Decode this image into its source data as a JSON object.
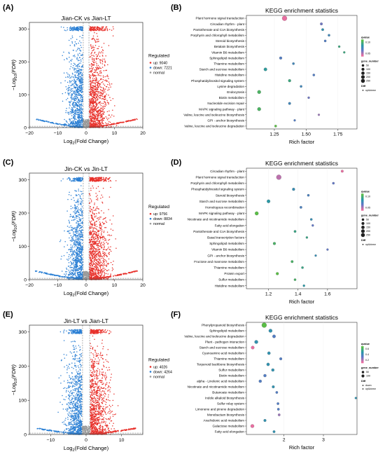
{
  "colors": {
    "up": "#e8302a",
    "down": "#2a7fd4",
    "normal": "#9a9a9a",
    "up_down": "#e96aa5"
  },
  "chart_data": [
    {
      "panel": "(A)",
      "type": "scatter",
      "title": "Jian-CK vs Jian-LT",
      "xlabel_parts": [
        "Log",
        "2",
        "(Fold Change)"
      ],
      "ylabel_parts": [
        "−Log",
        "10",
        "(FDR)"
      ],
      "xlim": [
        -20,
        20
      ],
      "ylim": [
        0,
        320
      ],
      "xticks": [
        "−20",
        "−10",
        "0",
        "10",
        "20"
      ],
      "yticks": [
        "0",
        "100",
        "200",
        "300"
      ],
      "legend_title": "Regulated",
      "legend": [
        "up: 9040",
        "down: 7221",
        "normal"
      ],
      "counts": {
        "up": 9040,
        "down": 7221
      }
    },
    {
      "panel": "(B)",
      "type": "scatter",
      "title": "KEGG enrichment statistics",
      "xlabel": "Rich factor",
      "xlim": [
        1.03,
        1.9
      ],
      "xtick_values": [
        1.25,
        1.5,
        1.75
      ],
      "xticks": [
        "1.25",
        "1.50",
        "1.75"
      ],
      "pathways": [
        "Plant hormone signal transduction",
        "Circadian rhythm - plant",
        "Pantothenate and CoA biosynthesis",
        "Porphyrin and chlorophyll metabolism",
        "Steroid biosynthesis",
        "Betalain biosynthesis",
        "Vitamin B6 metabolism",
        "Sphingolipid metabolism",
        "Thiamine metabolism",
        "Starch and sucrose metabolism",
        "Histidine metabolism",
        "Phosphatidylinositol signaling system",
        "Lysine degradation",
        "Endocytosis",
        "Biotin metabolism",
        "Nucleotide excision repair",
        "MAPK signaling pathway - plant",
        "Valine, leucine and isoleucine biosynthesis",
        "GPI - anchor biosynthesis",
        "Valine, leucine and isoleucine degradation"
      ],
      "rich_factor": [
        1.33,
        1.62,
        1.63,
        1.68,
        1.65,
        1.76,
        1.8,
        1.3,
        1.4,
        1.18,
        1.56,
        1.37,
        1.46,
        1.13,
        1.52,
        1.37,
        1.13,
        1.6,
        1.41,
        1.26
      ],
      "gene_number": [
        230,
        30,
        25,
        20,
        20,
        15,
        12,
        40,
        20,
        70,
        20,
        40,
        20,
        90,
        15,
        30,
        90,
        10,
        12,
        20
      ],
      "qvalue": [
        0.02,
        0.05,
        0.08,
        0.07,
        0.06,
        0.1,
        0.1,
        0.06,
        0.07,
        0.09,
        0.06,
        0.1,
        0.07,
        0.11,
        0.05,
        0.07,
        0.11,
        0.04,
        0.06,
        0.12
      ],
      "legend": {
        "qvalue_title": "qvalue",
        "qvalue_ticks": [
          "0.10",
          "0.05"
        ],
        "gene_title": "gene_number",
        "gene_ticks": [
          "50",
          "100",
          "150",
          "200",
          "250"
        ],
        "diff_title": "Diff",
        "diff_item": "up&down"
      }
    },
    {
      "panel": "(C)",
      "type": "scatter",
      "title": "Jin-CK vs Jin-LT",
      "xlabel_parts": [
        "Log",
        "2",
        "(Fold Change)"
      ],
      "ylabel_parts": [
        "−Log",
        "10",
        "(FDR)"
      ],
      "xlim": [
        -20,
        20
      ],
      "ylim": [
        0,
        320
      ],
      "xticks": [
        "−20",
        "−10",
        "0",
        "10",
        "20"
      ],
      "yticks": [
        "0",
        "100",
        "200",
        "300"
      ],
      "legend_title": "Regulated",
      "legend": [
        "up: 9756",
        "down: 8834",
        "normal"
      ],
      "counts": {
        "up": 9756,
        "down": 8834
      }
    },
    {
      "panel": "(D)",
      "type": "scatter",
      "title": "KEGG enrichment statistics",
      "xlabel": "Rich factor",
      "xlim": [
        1.05,
        1.8
      ],
      "xtick_values": [
        1.2,
        1.4,
        1.6
      ],
      "xticks": [
        "1.2",
        "1.4",
        "1.6"
      ],
      "pathways": [
        "Circadian rhythm - plant",
        "Plant hormone signal transduction",
        "Porphyrin and chlorophyll metabolism",
        "Phosphatidylinositol signaling system",
        "Steroid biosynthesis",
        "Starch and sucrose metabolism",
        "Homologous recombination",
        "MAPK signaling pathway - plant",
        "Nicotinate and nicotinamide metabolism",
        "Fatty acid elongation",
        "Pantothenate and CoA biosynthesis",
        "Basal transcription factors",
        "Sphingolipid metabolism",
        "Vitamin B6 metabolism",
        "GPI - anchor biosynthesis",
        "Fructose and mannose metabolism",
        "Thiamine metabolism",
        "Protein export",
        "Sulfur metabolism",
        "Histidine metabolism"
      ],
      "rich_factor": [
        1.7,
        1.27,
        1.64,
        1.37,
        1.47,
        1.2,
        1.42,
        1.12,
        1.49,
        1.5,
        1.38,
        1.46,
        1.24,
        1.6,
        1.52,
        1.36,
        1.43,
        1.26,
        1.38,
        1.44
      ],
      "gene_number": [
        30,
        240,
        20,
        40,
        20,
        80,
        25,
        100,
        20,
        15,
        25,
        15,
        40,
        12,
        12,
        30,
        20,
        40,
        20,
        15
      ],
      "qvalue": [
        0.02,
        0.03,
        0.05,
        0.07,
        0.06,
        0.08,
        0.06,
        0.11,
        0.07,
        0.05,
        0.09,
        0.09,
        0.1,
        0.05,
        0.07,
        0.1,
        0.09,
        0.11,
        0.1,
        0.08
      ],
      "legend": {
        "qvalue_title": "qvalue",
        "qvalue_ticks": [
          "0.10",
          "0.05"
        ],
        "gene_title": "gene_number",
        "gene_ticks": [
          "50",
          "100",
          "150",
          "200",
          "250"
        ],
        "diff_title": "Diff",
        "diff_item": "up&down"
      }
    },
    {
      "panel": "(E)",
      "type": "scatter",
      "title": "Jin-LT vs Jian-LT",
      "xlabel_parts": [
        "Log",
        "2",
        "(Fold Change)"
      ],
      "ylabel_parts": [
        "−Log",
        "10",
        "(FDR)"
      ],
      "xlim": [
        -16,
        16
      ],
      "ylim": [
        0,
        320
      ],
      "xticks": [
        "−10",
        "0",
        "10"
      ],
      "yticks": [
        "0",
        "100",
        "200",
        "300"
      ],
      "legend_title": "Regulated",
      "legend": [
        "up: 4026",
        "down: 4264",
        "normal"
      ],
      "counts": {
        "up": 4026,
        "down": 4264
      }
    },
    {
      "panel": "(F)",
      "type": "scatter",
      "title": "KEGG enrichment statistics",
      "xlabel": "Rich factor",
      "xlim": [
        1.05,
        3.85
      ],
      "xtick_values": [
        2,
        3
      ],
      "xticks": [
        "2",
        "3"
      ],
      "pathways": [
        "Phenylpropanoid biosynthesis",
        "Sphingolipid metabolism",
        "Valine, leucine and isoleucine degradation",
        "Plant - pathogen interaction",
        "Starch and sucrose metabolism",
        "Cyanoamino acid metabolism",
        "Thiamine metabolism",
        "Terpenoid backbone biosynthesis",
        "Sulfur metabolism",
        "Biotin metabolism",
        "alpha - Linolenic acid metabolism",
        "Nicotinate and nicotinamide metabolism",
        "Butanoate metabolism",
        "Indole alkaloid biosynthesis",
        "Sulfur relay system",
        "Limonene and pinene degradation",
        "Monobactam biosynthesis",
        "Arachidonic acid metabolism",
        "Galactose metabolism",
        "Fatty acid elongation"
      ],
      "rich_factor": [
        1.5,
        1.66,
        1.75,
        1.3,
        1.21,
        1.62,
        1.92,
        1.6,
        1.72,
        1.52,
        1.4,
        1.73,
        1.82,
        3.82,
        1.85,
        1.86,
        1.88,
        1.52,
        1.2,
        1.75
      ],
      "gene_number": [
        100,
        40,
        30,
        40,
        30,
        25,
        15,
        25,
        20,
        20,
        20,
        15,
        10,
        5,
        10,
        10,
        10,
        15,
        40,
        12
      ],
      "qvalue": [
        0.7,
        0.5,
        0.4,
        0.5,
        0.2,
        0.5,
        0.4,
        0.5,
        0.5,
        0.4,
        0.4,
        0.5,
        0.4,
        0.5,
        0.4,
        0.4,
        0.3,
        0.5,
        0.2,
        0.5
      ],
      "legend": {
        "qvalue_title": "qvalue",
        "qvalue_ticks": [
          "0.6",
          "0.4",
          "0.2"
        ],
        "gene_title": "gene_number",
        "gene_ticks": [
          "50",
          "100"
        ],
        "diff_title": "Diff",
        "diff_items": [
          "down",
          "up&down"
        ]
      }
    }
  ]
}
